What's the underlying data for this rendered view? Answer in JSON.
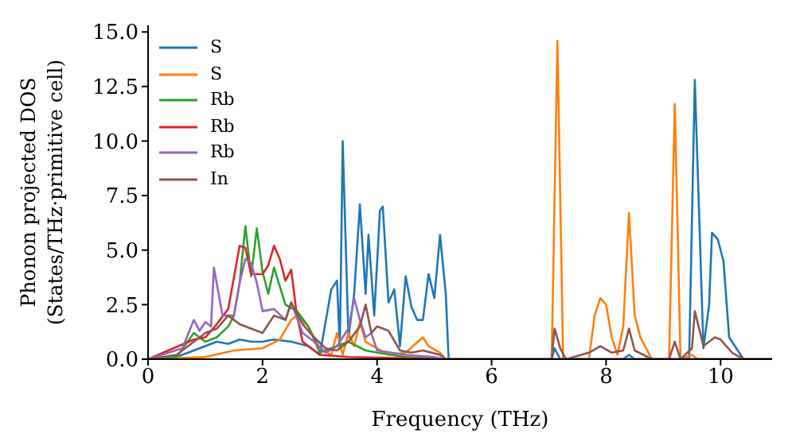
{
  "chart_data": {
    "type": "line",
    "xlabel": "Frequency (THz)",
    "ylabel": "Phonon projected DOS\n(States/THz·primitive cell)",
    "xlim": [
      0,
      10.9
    ],
    "xticks": [
      0,
      2,
      4,
      6,
      8,
      10
    ],
    "ylim": [
      0,
      15.3
    ],
    "yticks": [
      {
        "value": 0,
        "label": "0.0"
      },
      2.5,
      {
        "value": 5,
        "label": "5.0"
      },
      7.5,
      {
        "value": 10,
        "label": "10.0"
      },
      12.5,
      {
        "value": 15,
        "label": "15.0"
      }
    ],
    "grid": false,
    "legend": "top left",
    "marker": "none",
    "line_style": "solid",
    "series": [
      {
        "name": "S",
        "color": "#1f77b4",
        "x": [
          0,
          0.5,
          0.8,
          1.0,
          1.2,
          1.4,
          1.6,
          1.8,
          2.0,
          2.2,
          2.5,
          2.8,
          3.0,
          3.2,
          3.3,
          3.35,
          3.4,
          3.5,
          3.6,
          3.7,
          3.8,
          3.85,
          3.95,
          4.05,
          4.1,
          4.2,
          4.3,
          4.4,
          4.5,
          4.6,
          4.7,
          4.8,
          4.9,
          5.0,
          5.1,
          5.2,
          5.25,
          7.05,
          7.1,
          7.2,
          8.3,
          8.4,
          8.5,
          9.45,
          9.55,
          9.7,
          9.8,
          9.85,
          9.95,
          10.05,
          10.15,
          10.3,
          10.4,
          10.9
        ],
        "values": [
          0,
          0.1,
          0.4,
          0.6,
          0.8,
          0.7,
          0.9,
          0.8,
          0.8,
          0.9,
          0.8,
          0.6,
          0.2,
          3.2,
          3.6,
          0.5,
          10.0,
          1.0,
          3.0,
          7.1,
          3.0,
          5.7,
          2.0,
          6.8,
          7.0,
          2.6,
          3.2,
          0.6,
          3.8,
          2.4,
          1.8,
          1.8,
          3.9,
          2.8,
          5.7,
          3.0,
          0,
          0,
          0.5,
          0,
          0,
          0.2,
          0,
          0,
          12.8,
          0.5,
          2.5,
          5.8,
          5.5,
          4.5,
          1.0,
          0.4,
          0,
          0
        ]
      },
      {
        "name": "S",
        "color": "#ff7f0e",
        "x": [
          0,
          1.0,
          1.5,
          2.0,
          2.3,
          2.5,
          2.6,
          2.8,
          3.0,
          3.2,
          3.3,
          3.4,
          3.5,
          3.6,
          3.7,
          3.8,
          4.0,
          4.2,
          4.5,
          4.8,
          4.9,
          5.1,
          5.2,
          7.05,
          7.15,
          7.25,
          7.7,
          7.8,
          7.9,
          8.0,
          8.1,
          8.2,
          8.3,
          8.4,
          8.5,
          8.6,
          8.8,
          9.1,
          9.2,
          9.3,
          9.5,
          9.6,
          10.9
        ],
        "values": [
          0,
          0.1,
          0.4,
          0.5,
          0.9,
          1.8,
          2.0,
          1.5,
          0.5,
          0.2,
          1.2,
          0.2,
          1.2,
          0.6,
          1.7,
          0.8,
          0.5,
          0.2,
          0.3,
          1.0,
          0.6,
          0.3,
          0,
          0,
          14.6,
          0,
          0,
          2.0,
          2.8,
          2.5,
          1.0,
          0.2,
          1.5,
          6.7,
          2.0,
          1.0,
          0,
          0,
          11.7,
          0,
          0.2,
          0,
          0
        ]
      },
      {
        "name": "Rb",
        "color": "#2ca02c",
        "x": [
          0,
          0.5,
          0.8,
          1.0,
          1.2,
          1.4,
          1.5,
          1.6,
          1.7,
          1.8,
          1.9,
          2.0,
          2.1,
          2.2,
          2.4,
          2.6,
          2.8,
          3.0,
          3.2,
          3.5,
          3.8,
          4.0,
          4.5,
          5.2,
          10.9
        ],
        "values": [
          0,
          0.1,
          1.2,
          0.8,
          1.0,
          1.5,
          2.0,
          3.5,
          6.1,
          3.8,
          6.0,
          4.0,
          3.0,
          4.2,
          2.5,
          2.2,
          1.5,
          0.3,
          0.5,
          0.8,
          0.4,
          0.3,
          0.1,
          0,
          0
        ]
      },
      {
        "name": "Rb",
        "color": "#d62728",
        "x": [
          0,
          0.8,
          1.0,
          1.2,
          1.4,
          1.6,
          1.7,
          1.8,
          2.0,
          2.1,
          2.2,
          2.3,
          2.4,
          2.5,
          2.6,
          2.7,
          3.0,
          3.5,
          5.2,
          10.9
        ],
        "values": [
          0,
          0.9,
          1.0,
          1.6,
          2.3,
          5.2,
          5.1,
          3.9,
          3.9,
          4.3,
          5.2,
          4.6,
          3.6,
          4.1,
          2.0,
          0.8,
          0.2,
          0.1,
          0,
          0
        ]
      },
      {
        "name": "Rb",
        "color": "#9467bd",
        "x": [
          0,
          0.6,
          0.8,
          0.9,
          1.0,
          1.1,
          1.15,
          1.3,
          1.5,
          1.6,
          1.7,
          1.8,
          1.9,
          2.0,
          2.2,
          2.4,
          2.5,
          2.7,
          2.9,
          3.1,
          3.3,
          3.5,
          3.6,
          3.7,
          3.8,
          3.9,
          4.0,
          4.5,
          5.0,
          5.2,
          10.9
        ],
        "values": [
          0,
          0.5,
          1.8,
          1.3,
          1.7,
          1.5,
          4.2,
          2.0,
          2.0,
          3.5,
          4.6,
          4.4,
          3.5,
          2.2,
          2.3,
          1.8,
          2.6,
          1.2,
          0.8,
          0.3,
          0.6,
          1.4,
          2.8,
          1.8,
          1.0,
          1.2,
          0.4,
          0.2,
          0.1,
          0,
          0
        ]
      },
      {
        "name": "In",
        "color": "#8c564b",
        "x": [
          0,
          0.5,
          0.8,
          1.0,
          1.2,
          1.4,
          1.6,
          1.8,
          2.0,
          2.2,
          2.4,
          2.5,
          2.7,
          2.9,
          3.1,
          3.3,
          3.5,
          3.7,
          3.8,
          3.9,
          4.0,
          4.2,
          4.4,
          4.6,
          4.8,
          5.1,
          5.2,
          7.05,
          7.1,
          7.2,
          7.3,
          7.7,
          7.9,
          8.1,
          8.3,
          8.4,
          8.5,
          8.8,
          9.1,
          9.2,
          9.3,
          9.5,
          9.55,
          9.7,
          9.9,
          10.0,
          10.2,
          10.4,
          10.9
        ],
        "values": [
          0,
          0.2,
          0.8,
          1.2,
          1.4,
          2.0,
          1.6,
          1.4,
          1.2,
          2.0,
          1.8,
          2.6,
          1.6,
          1.0,
          0.5,
          0.4,
          0.8,
          1.5,
          2.5,
          1.2,
          1.5,
          1.3,
          0.4,
          0.3,
          0.4,
          0.2,
          0,
          0,
          1.4,
          0.5,
          0,
          0.3,
          0.6,
          0.3,
          0.4,
          1.4,
          0.4,
          0,
          0,
          0.8,
          0,
          0.5,
          2.2,
          0.6,
          1.0,
          0.9,
          0.3,
          0,
          0
        ]
      }
    ]
  }
}
